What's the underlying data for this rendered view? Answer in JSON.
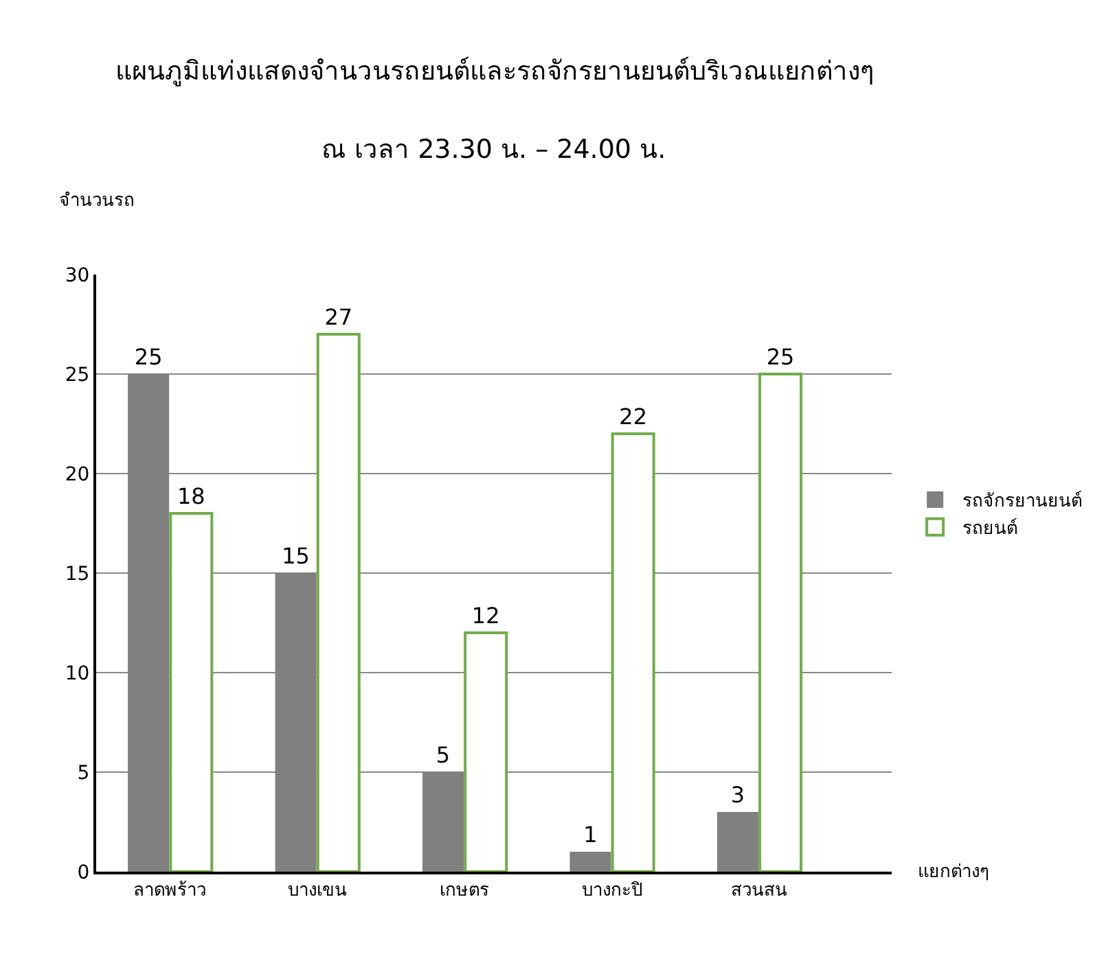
{
  "chart_data": {
    "type": "bar",
    "title": "แผนภูมิแท่งแสดงจำนวนรถยนต์และรถจักรยานยนต์บริเวณแยกต่างๆ",
    "subtitle": "ณ เวลา 23.30 น. – 24.00 น.",
    "xlabel": "แยกต่างๆ",
    "ylabel": "จำนวนรถ",
    "categories": [
      "ลาดพร้าว",
      "บางเขน",
      "เกษตร",
      "บางกะปิ",
      "สวนสน"
    ],
    "series": [
      {
        "name": "รถจักรยานยนต์",
        "color": "#808080",
        "values": [
          25,
          15,
          5,
          1,
          3
        ]
      },
      {
        "name": "รถยนต์",
        "color": "#70ad47",
        "values": [
          18,
          27,
          12,
          22,
          25
        ]
      }
    ],
    "ylim": [
      0,
      30
    ],
    "yticks": [
      0,
      5,
      10,
      15,
      20,
      25,
      30
    ],
    "grid": "y",
    "legend": "right",
    "data_labels": true
  }
}
